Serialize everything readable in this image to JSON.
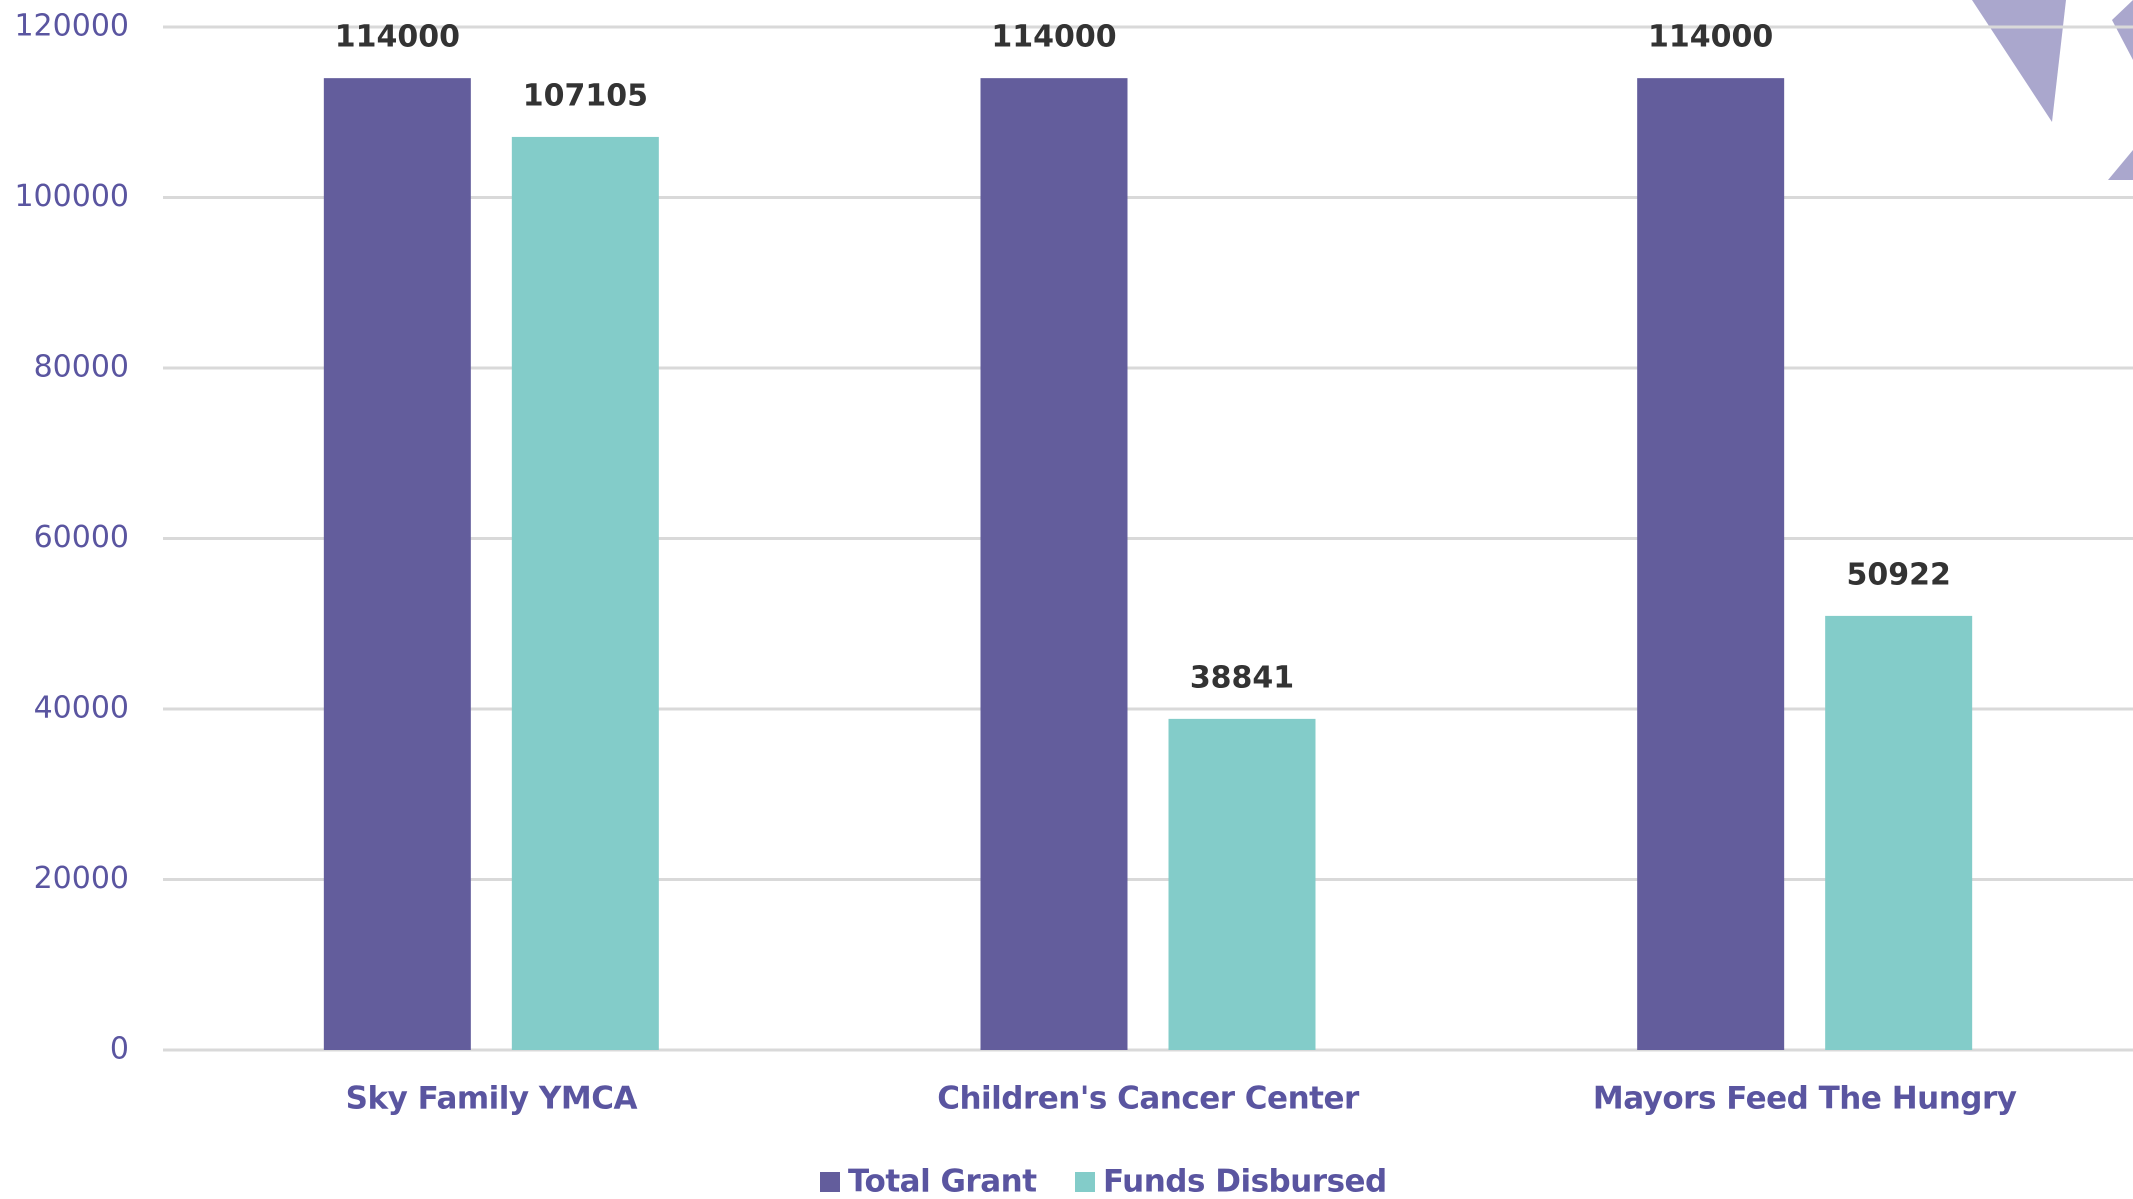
{
  "chart_data": {
    "type": "bar",
    "categories": [
      "Sky Family YMCA",
      "Children's Cancer Center",
      "Mayors Feed The Hungry"
    ],
    "series": [
      {
        "name": "Total Grant",
        "color": "#635d9c",
        "values": [
          114000,
          114000,
          114000
        ]
      },
      {
        "name": "Funds Disbursed",
        "color": "#83ccc9",
        "values": [
          107105,
          38841,
          50922
        ]
      }
    ],
    "ylim": [
      0,
      120000
    ],
    "yticks": [
      0,
      20000,
      40000,
      60000,
      80000,
      100000,
      120000
    ],
    "grid": true,
    "legend": "bottom"
  }
}
